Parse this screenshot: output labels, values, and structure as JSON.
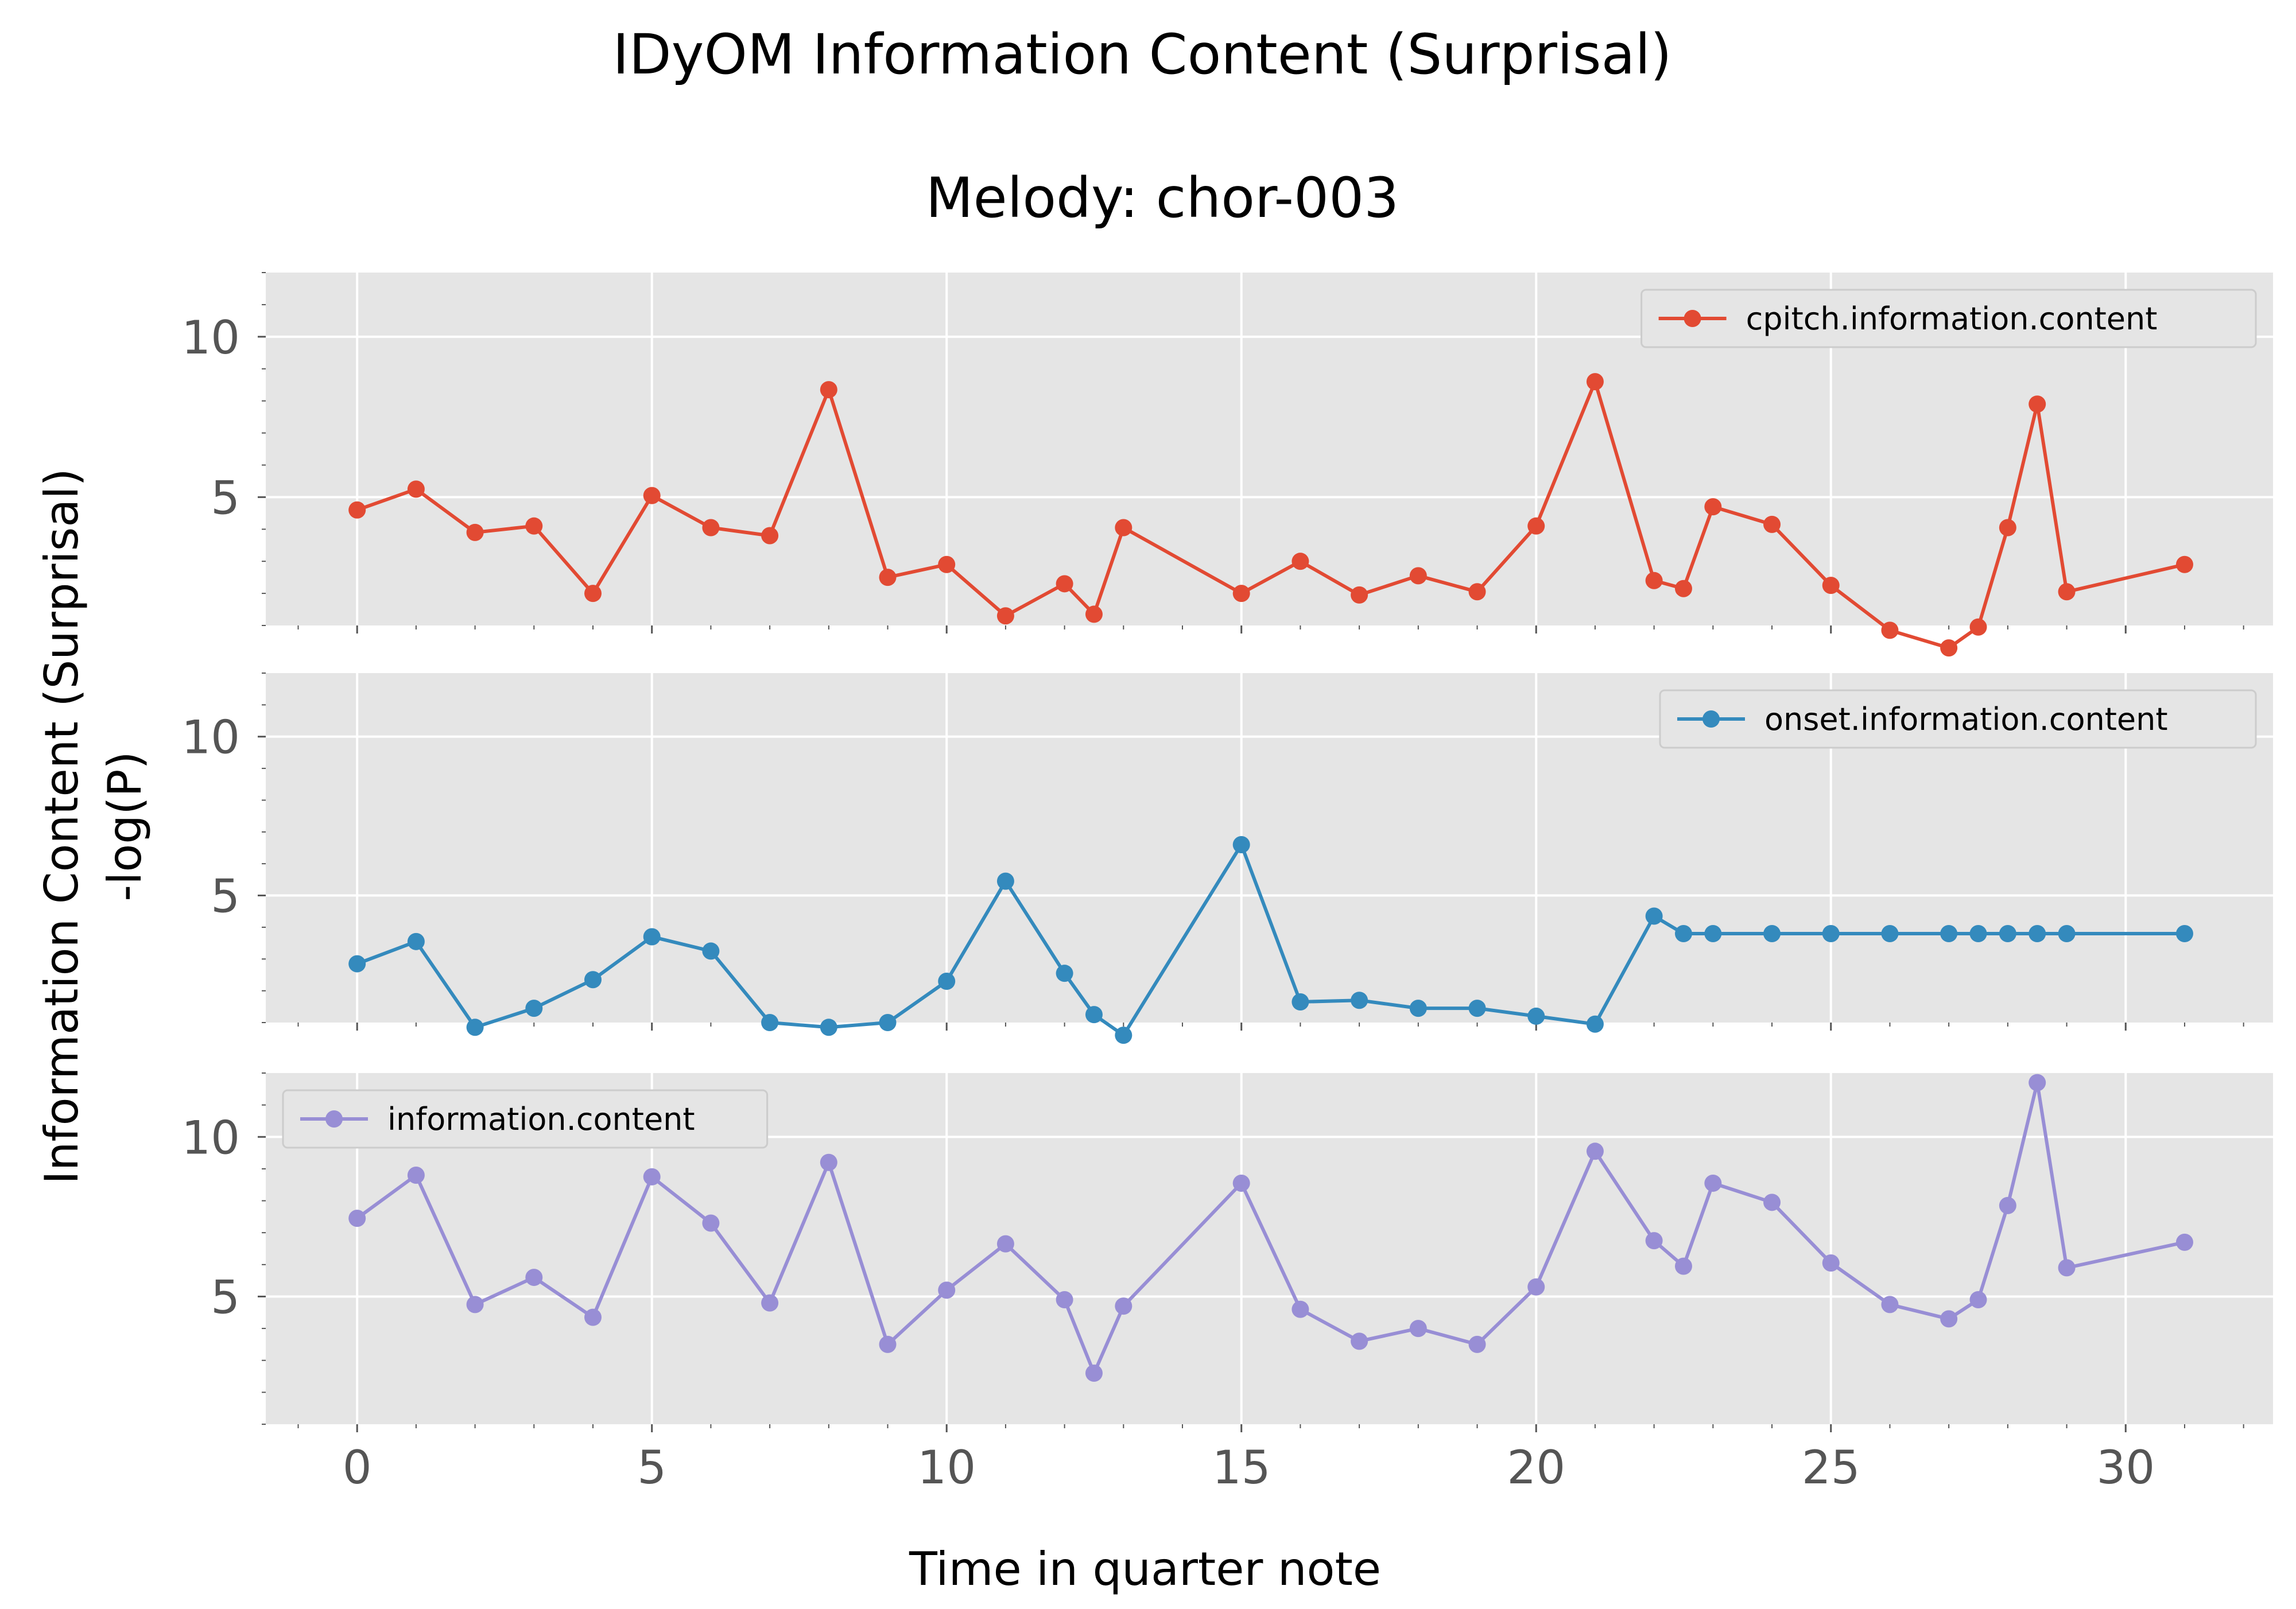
{
  "chart_data": {
    "type": "line",
    "title": "IDyOM Information Content (Surprisal)",
    "subtitle": "Melody: chor-003",
    "xlabel": "Time in quarter note",
    "ylabel_line1": "Information Content (Surprisal)",
    "ylabel_line2": "-log(P)",
    "xlim": [
      -1.55,
      32.5
    ],
    "ylim": [
      1.0,
      12.0
    ],
    "xticks": [
      0,
      5,
      10,
      15,
      20,
      25,
      30
    ],
    "yticks": [
      5,
      10
    ],
    "grid": true,
    "sharex": true,
    "panels": [
      {
        "legend_label": "cpitch.information.content",
        "legend_position": "upper right",
        "color": "#E24A33",
        "x": [
          0,
          1,
          2,
          3,
          4,
          5,
          6,
          7,
          8,
          9,
          10,
          11,
          12,
          12.5,
          13,
          15,
          16,
          17,
          18,
          19,
          20,
          21,
          22,
          22.5,
          23,
          24,
          25,
          26,
          27,
          27.5,
          28,
          28.5,
          29,
          31
        ],
        "y": [
          4.6,
          5.25,
          3.9,
          4.1,
          2.0,
          5.05,
          4.05,
          3.8,
          8.35,
          2.5,
          2.9,
          1.3,
          2.3,
          1.35,
          4.05,
          2.0,
          3.0,
          1.95,
          2.55,
          2.05,
          4.1,
          8.6,
          2.4,
          2.15,
          4.7,
          4.15,
          2.25,
          0.85,
          0.3,
          0.95,
          4.05,
          7.9,
          2.05,
          2.9
        ]
      },
      {
        "legend_label": "onset.information.content",
        "legend_position": "upper right",
        "color": "#348ABD",
        "x": [
          0,
          1,
          2,
          3,
          4,
          5,
          6,
          7,
          8,
          9,
          10,
          11,
          12,
          12.5,
          13,
          15,
          16,
          17,
          18,
          19,
          20,
          21,
          22,
          22.5,
          23,
          24,
          25,
          26,
          27,
          27.5,
          28,
          28.5,
          29,
          31
        ],
        "y": [
          2.85,
          3.55,
          0.85,
          1.45,
          2.35,
          3.7,
          3.25,
          1.0,
          0.85,
          1.0,
          2.3,
          5.45,
          2.55,
          1.25,
          0.6,
          6.6,
          1.65,
          1.7,
          1.45,
          1.45,
          1.2,
          0.95,
          4.35,
          3.8,
          3.8,
          3.8,
          3.8,
          3.8,
          3.8,
          3.8,
          3.8,
          3.8,
          3.8,
          3.8
        ]
      },
      {
        "legend_label": "information.content",
        "legend_position": "upper left",
        "color": "#988ED5",
        "x": [
          0,
          1,
          2,
          3,
          4,
          5,
          6,
          7,
          8,
          9,
          10,
          11,
          12,
          12.5,
          13,
          15,
          16,
          17,
          18,
          19,
          20,
          21,
          22,
          22.5,
          23,
          24,
          25,
          26,
          27,
          27.5,
          28,
          28.5,
          29,
          31
        ],
        "y": [
          7.45,
          8.8,
          4.75,
          5.6,
          4.35,
          8.75,
          7.3,
          4.8,
          9.2,
          3.5,
          5.2,
          6.65,
          4.9,
          2.6,
          4.7,
          8.55,
          4.6,
          3.6,
          4.0,
          3.5,
          5.3,
          9.55,
          6.75,
          5.95,
          8.55,
          7.95,
          6.05,
          4.75,
          4.3,
          4.9,
          7.85,
          11.7,
          5.9,
          6.7
        ]
      }
    ]
  }
}
